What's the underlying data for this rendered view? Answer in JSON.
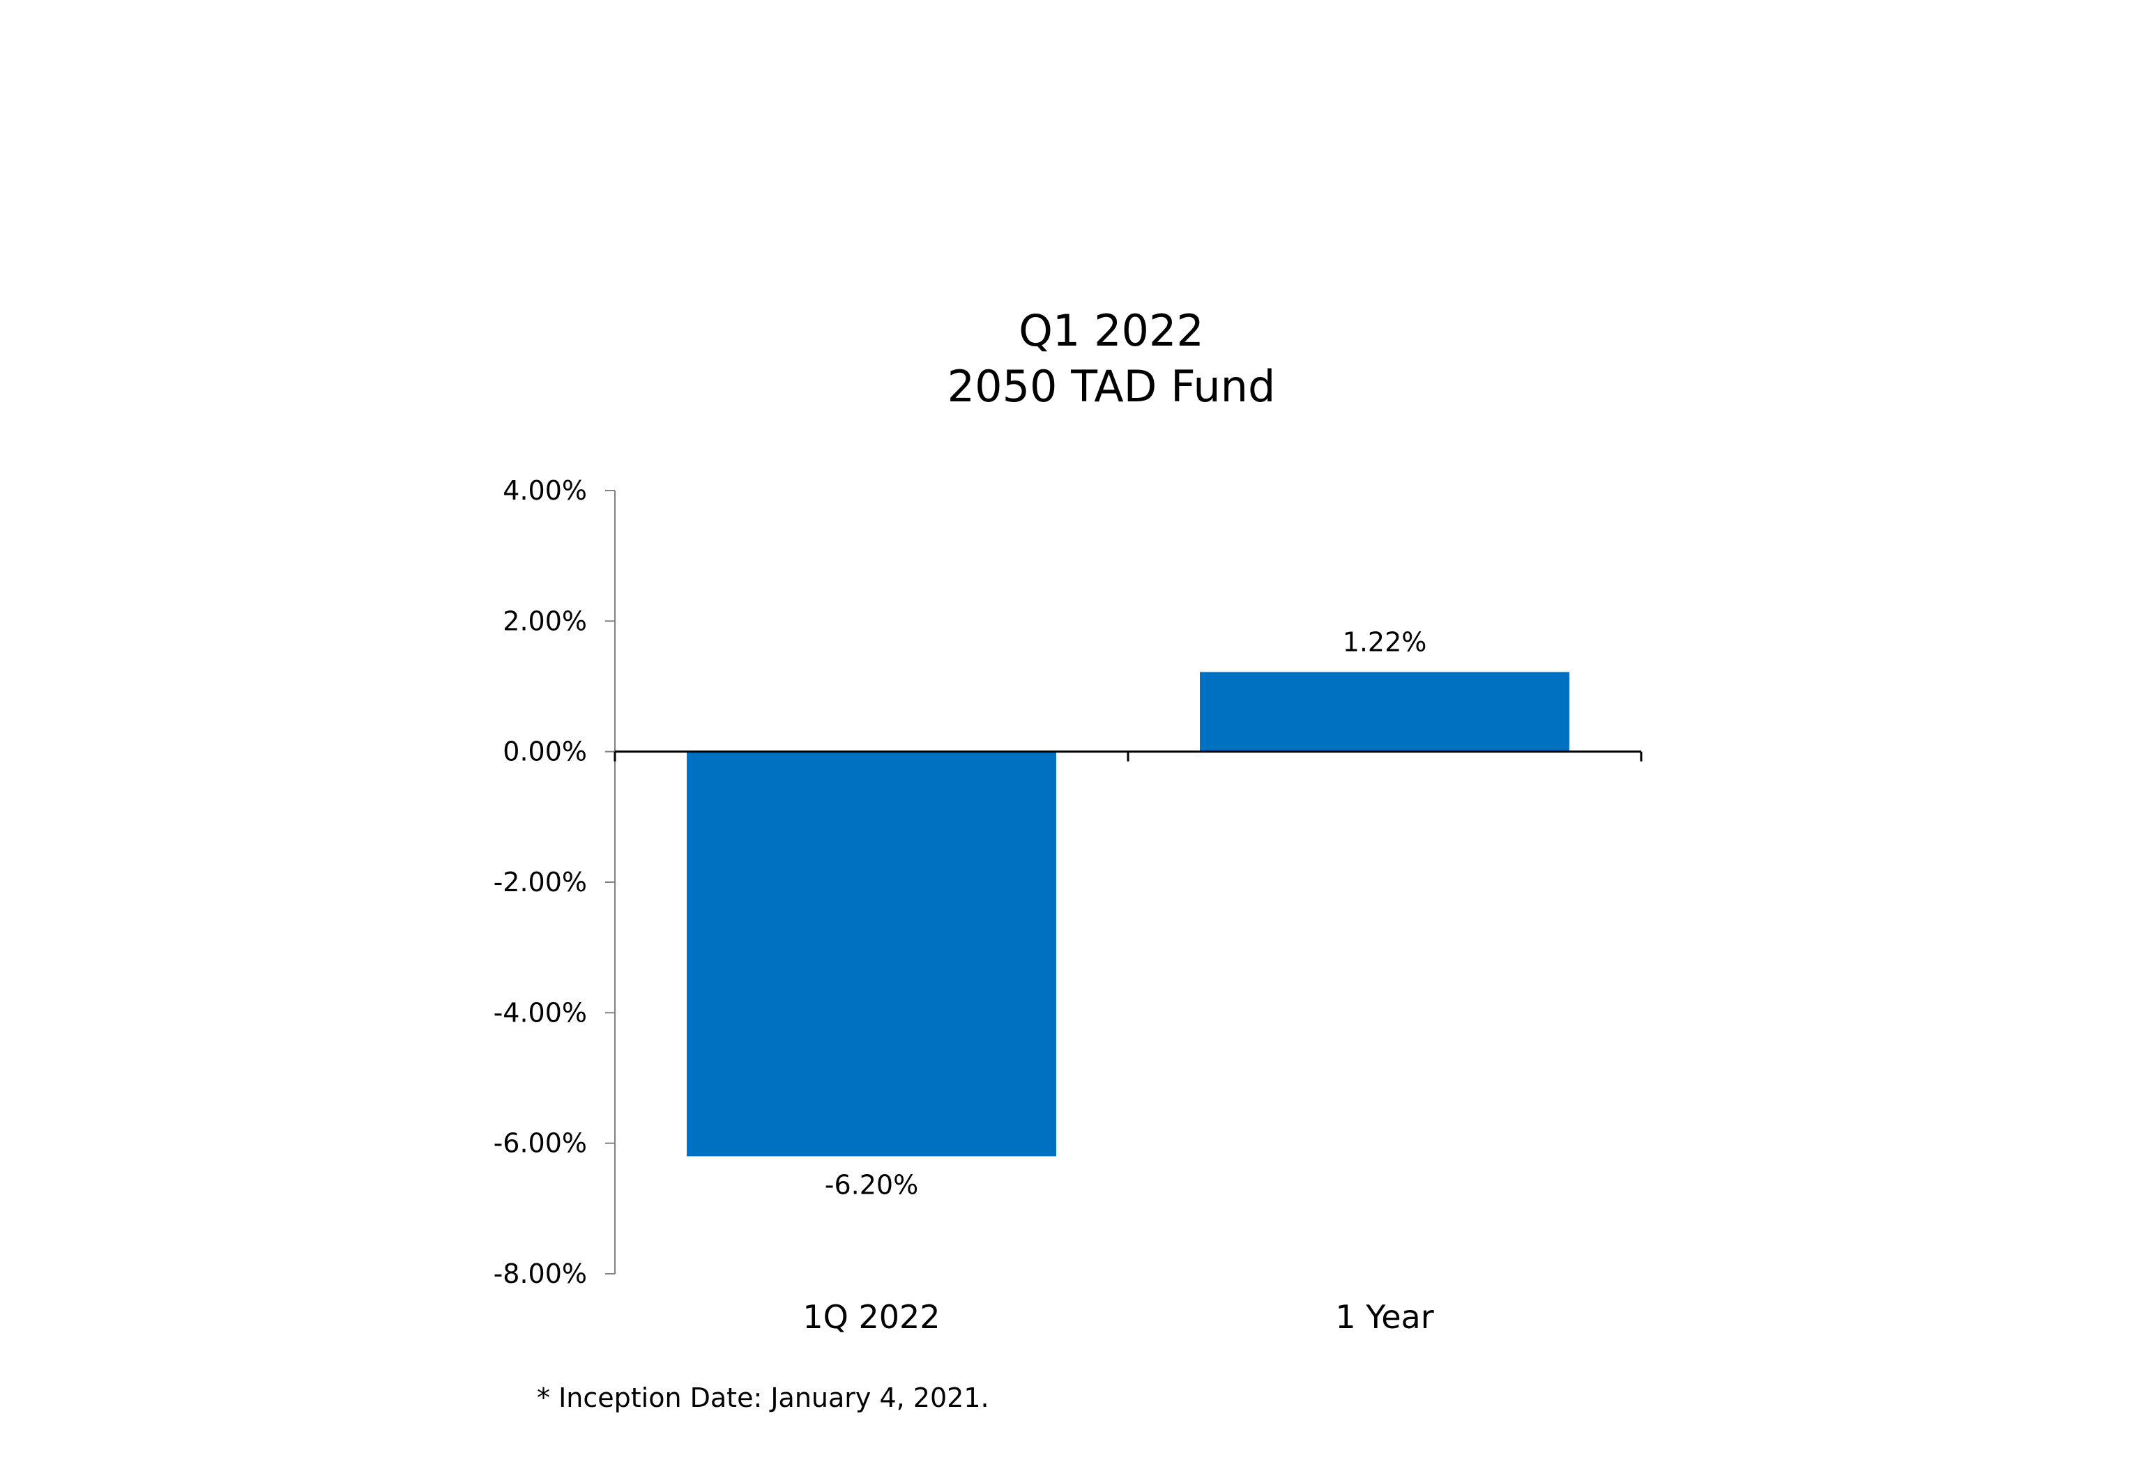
{
  "chart_data": {
    "type": "bar",
    "title": [
      "Q1 2022",
      "2050 TAD Fund"
    ],
    "categories": [
      "1Q 2022",
      "1 Year"
    ],
    "series": [
      {
        "values": [
          -6.2,
          1.22
        ],
        "data_labels": [
          "-6.20%",
          "1.22%"
        ],
        "color": "#0070C0"
      }
    ],
    "ylim": [
      -8,
      4
    ],
    "yticks": [
      4,
      2,
      0,
      -2,
      -4,
      -6,
      -8
    ],
    "ytick_labels": [
      "4.00%",
      "2.00%",
      "0.00%",
      "-2.00%",
      "-4.00%",
      "-6.00%",
      "-8.00%"
    ],
    "xlabel": "",
    "ylabel": "",
    "grid": false,
    "legend": "none"
  },
  "footnote": "* Inception Date: January 4, 2021."
}
